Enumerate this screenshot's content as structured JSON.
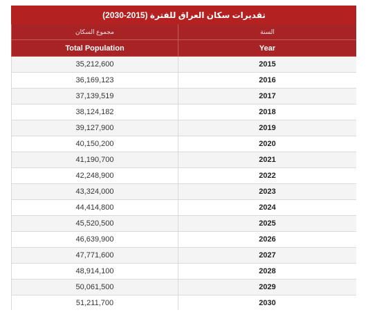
{
  "table": {
    "title": "تقديرات سكان العراق للفترة (2015-2030)",
    "header_ar": {
      "population": "مجموع السكان",
      "year": "السنة"
    },
    "header_en": {
      "population": "Total Population",
      "year": "Year"
    },
    "rows": [
      {
        "population": "35,212,600",
        "year": "2015"
      },
      {
        "population": "36,169,123",
        "year": "2016"
      },
      {
        "population": "37,139,519",
        "year": "2017"
      },
      {
        "population": "38,124,182",
        "year": "2018"
      },
      {
        "population": "39,127,900",
        "year": "2019"
      },
      {
        "population": "40,150,200",
        "year": "2020"
      },
      {
        "population": "41,190,700",
        "year": "2021"
      },
      {
        "population": "42,248,900",
        "year": "2022"
      },
      {
        "population": "43,324,000",
        "year": "2023"
      },
      {
        "population": "44,414,800",
        "year": "2024"
      },
      {
        "population": "45,520,500",
        "year": "2025"
      },
      {
        "population": "46,639,900",
        "year": "2026"
      },
      {
        "population": "47,771,600",
        "year": "2027"
      },
      {
        "population": "48,914,100",
        "year": "2028"
      },
      {
        "population": "50,061,500",
        "year": "2029"
      },
      {
        "population": "51,211,700",
        "year": "2030"
      }
    ]
  },
  "colors": {
    "header_red": "#b32121",
    "subheader_red": "#a82325",
    "stripe": "#f4f4f4"
  }
}
